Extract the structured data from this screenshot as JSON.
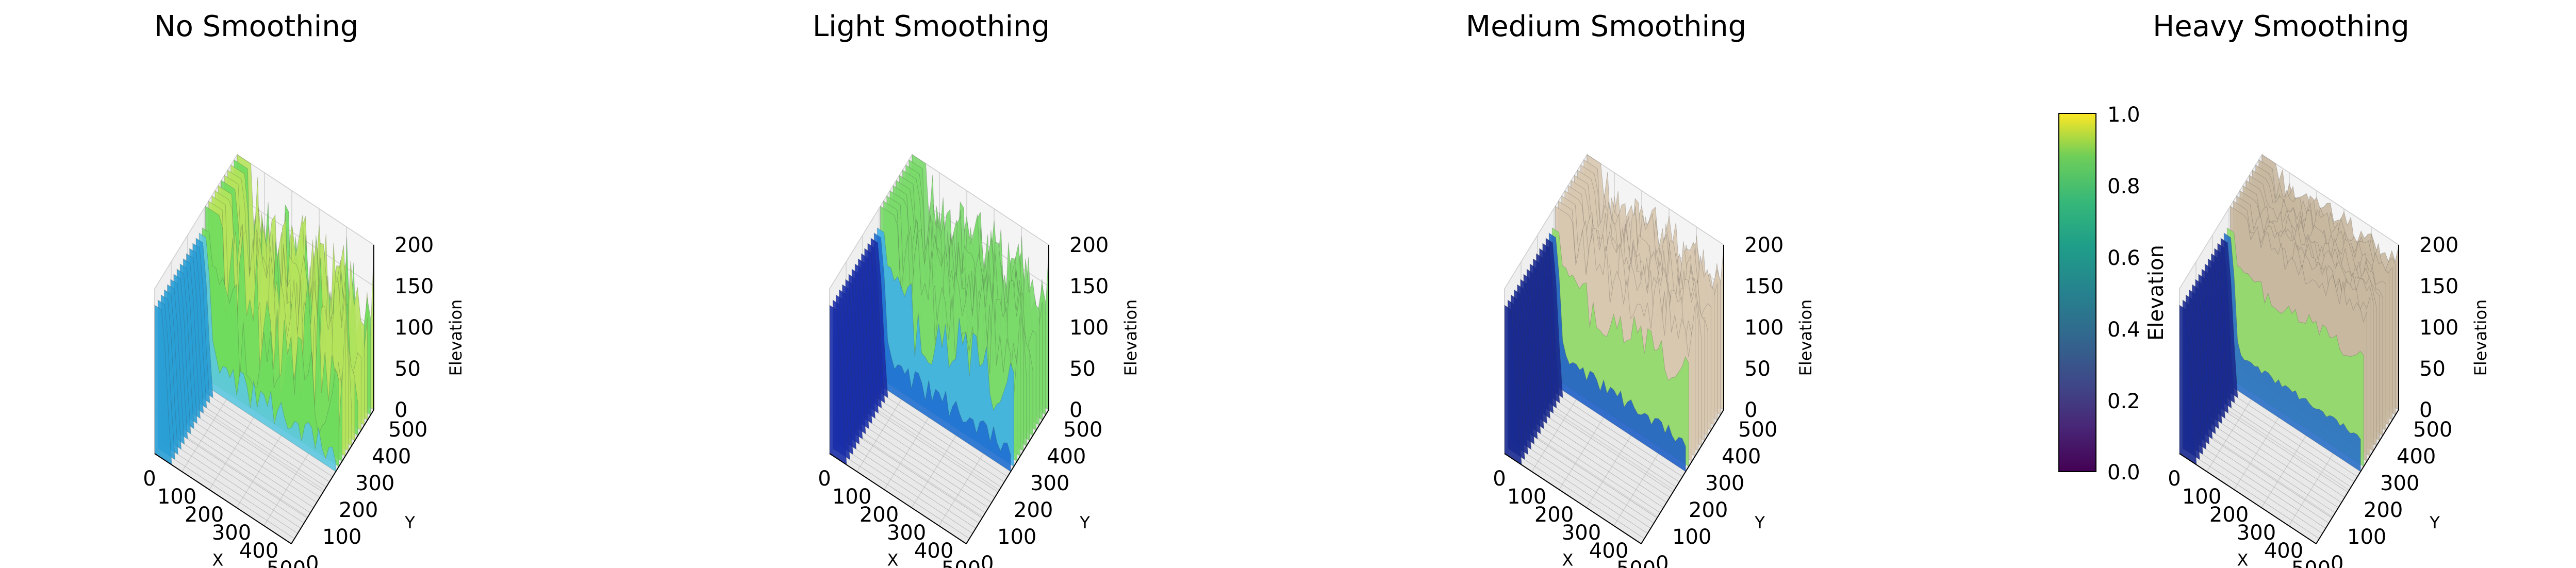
{
  "chart_data": [
    {
      "type": "surface3d",
      "title": "No Smoothing",
      "xlabel": "X",
      "ylabel": "Y",
      "zlabel": "Elevation",
      "xticks": [
        "0",
        "100",
        "200",
        "300",
        "400",
        "500"
      ],
      "yticks": [
        "0",
        "100",
        "200",
        "300",
        "400",
        "500"
      ],
      "zticks": [
        "0",
        "50",
        "100",
        "150",
        "200"
      ],
      "xlim": [
        0,
        500
      ],
      "ylim": [
        0,
        500
      ],
      "zlim": [
        0,
        200
      ],
      "grid": true,
      "surface": {
        "x_knots": [
          0,
          30,
          60,
          500
        ],
        "x_knot_levels": [
          180,
          180,
          0,
          0
        ],
        "y_knots": [
          0,
          260,
          300,
          500
        ],
        "y_knot_levels": [
          0,
          0,
          200,
          200
        ],
        "floor_level": 0,
        "peak_level": 200,
        "spike_density": "high"
      },
      "colormap": [
        "#2a9fd6",
        "#5cc8e0",
        "#6fdc5e",
        "#b5e35c",
        "#c8c8c8"
      ]
    },
    {
      "type": "surface3d",
      "title": "Light Smoothing",
      "xlabel": "X",
      "ylabel": "Y",
      "zlabel": "Elevation",
      "xticks": [
        "0",
        "100",
        "200",
        "300",
        "400",
        "500"
      ],
      "yticks": [
        "0",
        "100",
        "200",
        "300",
        "400",
        "500"
      ],
      "zticks": [
        "0",
        "50",
        "100",
        "150",
        "200"
      ],
      "xlim": [
        0,
        500
      ],
      "ylim": [
        0,
        500
      ],
      "zlim": [
        0,
        200
      ],
      "grid": true,
      "surface": {
        "x_knots": [
          0,
          30,
          60,
          500
        ],
        "x_knot_levels": [
          180,
          180,
          0,
          0
        ],
        "y_knots": [
          0,
          260,
          300,
          500
        ],
        "y_knot_levels": [
          0,
          0,
          200,
          200
        ],
        "floor_level": 0,
        "peak_level": 200,
        "spike_density": "medium"
      },
      "colormap": [
        "#1a2fa8",
        "#1f6fd0",
        "#3fb0e8",
        "#7ad96a",
        "#c8c8c8"
      ]
    },
    {
      "type": "surface3d",
      "title": "Medium Smoothing",
      "xlabel": "X",
      "ylabel": "Y",
      "zlabel": "Elevation",
      "xticks": [
        "0",
        "100",
        "200",
        "300",
        "400",
        "500"
      ],
      "yticks": [
        "0",
        "100",
        "200",
        "300",
        "400",
        "500"
      ],
      "zticks": [
        "0",
        "50",
        "100",
        "150",
        "200"
      ],
      "xlim": [
        0,
        500
      ],
      "ylim": [
        0,
        500
      ],
      "zlim": [
        0,
        200
      ],
      "grid": true,
      "surface": {
        "x_knots": [
          0,
          30,
          60,
          500
        ],
        "x_knot_levels": [
          180,
          180,
          0,
          0
        ],
        "y_knots": [
          0,
          260,
          300,
          500
        ],
        "y_knot_levels": [
          0,
          0,
          200,
          200
        ],
        "floor_level": 0,
        "peak_level": 200,
        "spike_density": "low"
      },
      "colormap": [
        "#1a2a90",
        "#2060c8",
        "#4fb8e0",
        "#8fdc6a",
        "#d8c8b0"
      ]
    },
    {
      "type": "surface3d",
      "title": "Heavy Smoothing",
      "xlabel": "X",
      "ylabel": "Y",
      "zlabel": "Elevation",
      "xticks": [
        "0",
        "100",
        "200",
        "300",
        "400",
        "500"
      ],
      "yticks": [
        "0",
        "100",
        "200",
        "300",
        "400",
        "500"
      ],
      "zticks": [
        "0",
        "50",
        "100",
        "150",
        "200"
      ],
      "xlim": [
        0,
        500
      ],
      "ylim": [
        0,
        500
      ],
      "zlim": [
        0,
        200
      ],
      "grid": true,
      "surface": {
        "x_knots": [
          0,
          30,
          60,
          500
        ],
        "x_knot_levels": [
          180,
          180,
          0,
          0
        ],
        "y_knots": [
          0,
          260,
          300,
          500
        ],
        "y_knot_levels": [
          0,
          0,
          200,
          200
        ],
        "floor_level": 0,
        "peak_level": 200,
        "spike_density": "smooth"
      },
      "colormap": [
        "#1a2a90",
        "#2a70c8",
        "#5cc0d8",
        "#8fdc6a",
        "#c8b8a0"
      ],
      "colorbar": {
        "label": "Elevation",
        "ticks": [
          "0.0",
          "0.2",
          "0.4",
          "0.6",
          "0.8",
          "1.0"
        ],
        "range": [
          0,
          1
        ],
        "colormap": "viridis"
      }
    }
  ]
}
